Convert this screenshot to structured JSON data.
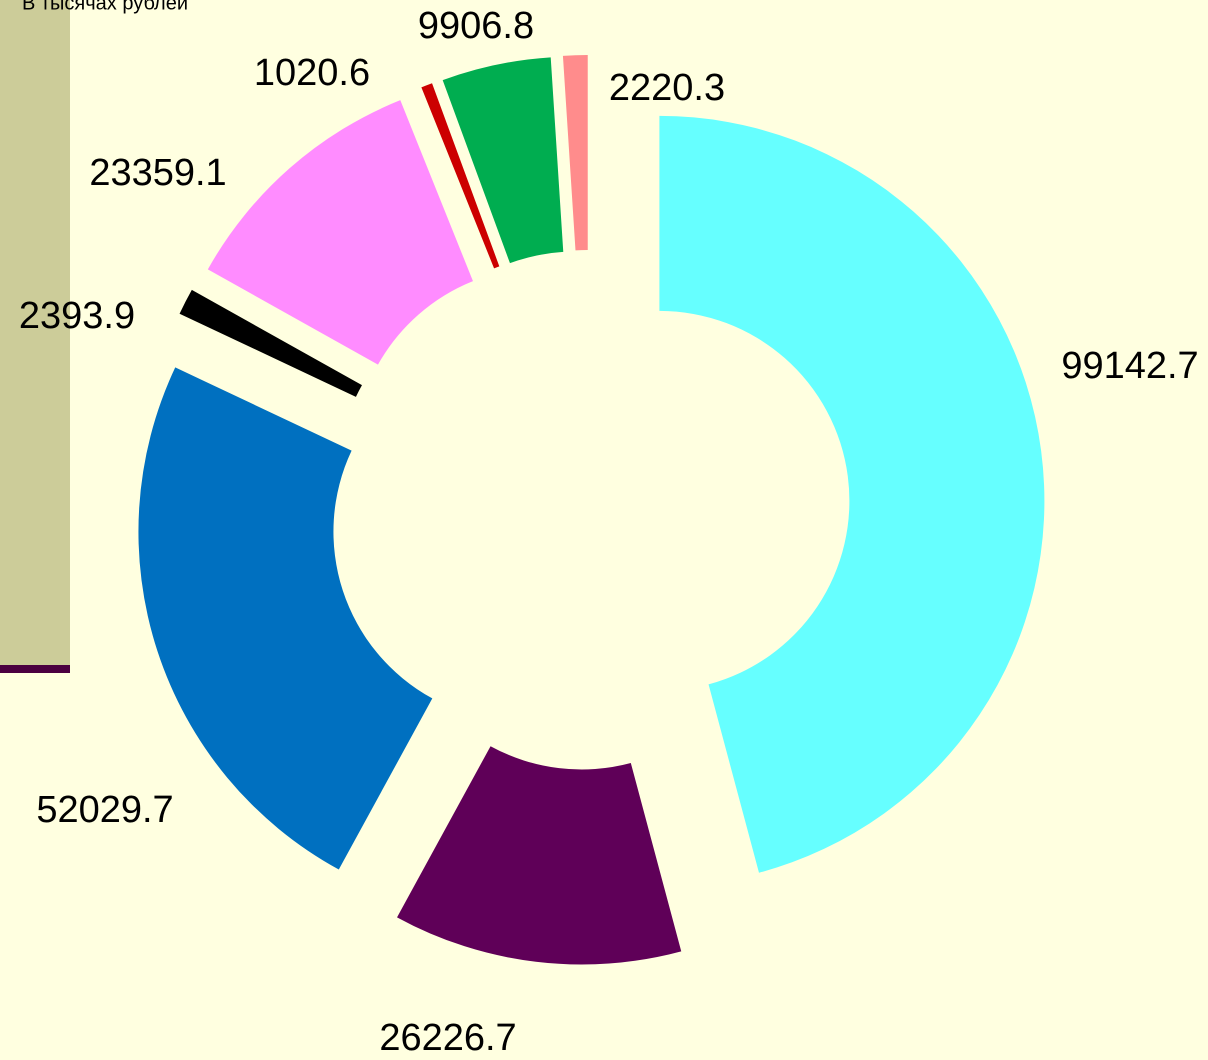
{
  "chart_data": {
    "type": "donut",
    "title": "В тысячах рублей",
    "categories": [
      null,
      null,
      null,
      null,
      null,
      null,
      null,
      null
    ],
    "values": [
      99142.7,
      26226.7,
      52029.7,
      2393.9,
      23359.1,
      1020.6,
      9906.8,
      2220.3
    ],
    "colors": [
      "#66ffff",
      "#5f0058",
      "#0070c0",
      "#000000",
      "#ff8cff",
      "#cc0000",
      "#00ad50",
      "#ff8c8c"
    ]
  }
}
